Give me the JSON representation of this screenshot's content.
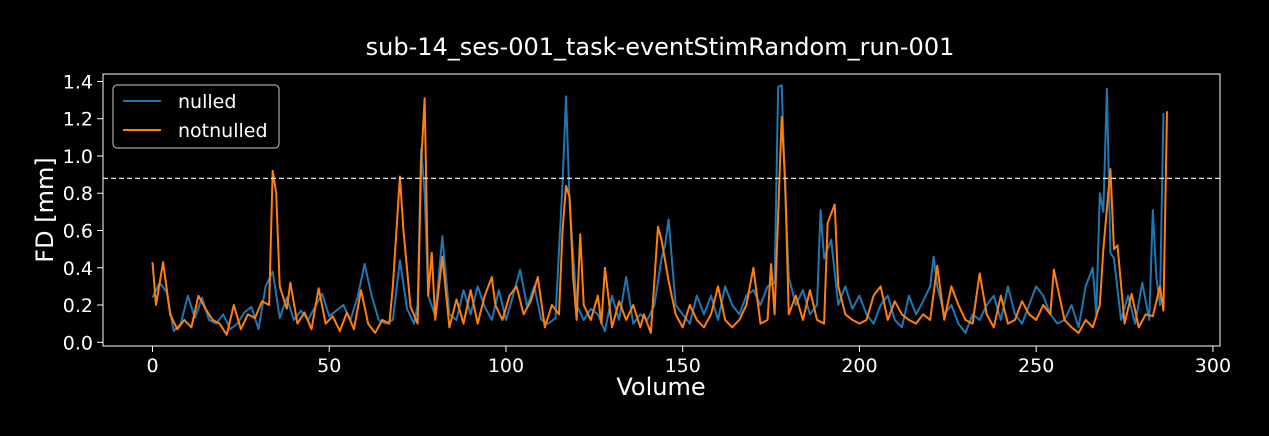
{
  "chart_data": {
    "type": "line",
    "title": "sub-14_ses-001_task-eventStimRandom_run-001",
    "xlabel": "Volume",
    "ylabel": "FD [mm]",
    "xlim": [
      -14,
      302
    ],
    "ylim": [
      -0.02,
      1.44
    ],
    "xticks": [
      0,
      50,
      100,
      150,
      200,
      250,
      300
    ],
    "yticks": [
      0.0,
      0.2,
      0.4,
      0.6,
      0.8,
      1.0,
      1.2,
      1.4
    ],
    "threshold": 0.88,
    "legend_position": "top-left",
    "grid": false,
    "background": "#000000",
    "series": [
      {
        "name": "nulled",
        "color": "#1f77b4",
        "points": [
          [
            0,
            0.24
          ],
          [
            2,
            0.32
          ],
          [
            4,
            0.27
          ],
          [
            6,
            0.06
          ],
          [
            8,
            0.1
          ],
          [
            10,
            0.25
          ],
          [
            12,
            0.13
          ],
          [
            14,
            0.24
          ],
          [
            16,
            0.12
          ],
          [
            18,
            0.1
          ],
          [
            20,
            0.15
          ],
          [
            22,
            0.07
          ],
          [
            24,
            0.1
          ],
          [
            26,
            0.16
          ],
          [
            28,
            0.19
          ],
          [
            30,
            0.07
          ],
          [
            32,
            0.3
          ],
          [
            34,
            0.38
          ],
          [
            36,
            0.13
          ],
          [
            38,
            0.24
          ],
          [
            40,
            0.12
          ],
          [
            42,
            0.17
          ],
          [
            44,
            0.12
          ],
          [
            46,
            0.19
          ],
          [
            48,
            0.26
          ],
          [
            50,
            0.14
          ],
          [
            52,
            0.17
          ],
          [
            54,
            0.2
          ],
          [
            56,
            0.12
          ],
          [
            58,
            0.24
          ],
          [
            60,
            0.42
          ],
          [
            62,
            0.25
          ],
          [
            64,
            0.12
          ],
          [
            66,
            0.1
          ],
          [
            68,
            0.12
          ],
          [
            70,
            0.44
          ],
          [
            72,
            0.18
          ],
          [
            74,
            0.1
          ],
          [
            75,
            0.2
          ],
          [
            76,
            1.04
          ],
          [
            77,
            0.8
          ],
          [
            78,
            0.25
          ],
          [
            80,
            0.14
          ],
          [
            82,
            0.57
          ],
          [
            84,
            0.15
          ],
          [
            86,
            0.12
          ],
          [
            88,
            0.28
          ],
          [
            90,
            0.15
          ],
          [
            92,
            0.3
          ],
          [
            94,
            0.19
          ],
          [
            96,
            0.12
          ],
          [
            98,
            0.28
          ],
          [
            100,
            0.12
          ],
          [
            102,
            0.25
          ],
          [
            104,
            0.39
          ],
          [
            106,
            0.19
          ],
          [
            108,
            0.3
          ],
          [
            110,
            0.12
          ],
          [
            112,
            0.1
          ],
          [
            114,
            0.13
          ],
          [
            116,
            0.85
          ],
          [
            117,
            1.32
          ],
          [
            118,
            0.75
          ],
          [
            120,
            0.2
          ],
          [
            122,
            0.12
          ],
          [
            124,
            0.18
          ],
          [
            126,
            0.15
          ],
          [
            128,
            0.06
          ],
          [
            130,
            0.25
          ],
          [
            132,
            0.12
          ],
          [
            134,
            0.35
          ],
          [
            136,
            0.1
          ],
          [
            138,
            0.15
          ],
          [
            140,
            0.12
          ],
          [
            142,
            0.2
          ],
          [
            144,
            0.45
          ],
          [
            145,
            0.52
          ],
          [
            146,
            0.66
          ],
          [
            148,
            0.2
          ],
          [
            150,
            0.15
          ],
          [
            152,
            0.1
          ],
          [
            154,
            0.25
          ],
          [
            156,
            0.15
          ],
          [
            158,
            0.25
          ],
          [
            160,
            0.12
          ],
          [
            162,
            0.3
          ],
          [
            164,
            0.2
          ],
          [
            166,
            0.15
          ],
          [
            168,
            0.25
          ],
          [
            170,
            0.28
          ],
          [
            172,
            0.2
          ],
          [
            174,
            0.3
          ],
          [
            176,
            0.32
          ],
          [
            177,
            1.37
          ],
          [
            178,
            1.38
          ],
          [
            179,
            0.8
          ],
          [
            180,
            0.35
          ],
          [
            182,
            0.2
          ],
          [
            184,
            0.28
          ],
          [
            186,
            0.15
          ],
          [
            188,
            0.2
          ],
          [
            189,
            0.71
          ],
          [
            190,
            0.45
          ],
          [
            192,
            0.55
          ],
          [
            194,
            0.2
          ],
          [
            196,
            0.3
          ],
          [
            198,
            0.18
          ],
          [
            200,
            0.25
          ],
          [
            202,
            0.15
          ],
          [
            204,
            0.1
          ],
          [
            206,
            0.2
          ],
          [
            208,
            0.25
          ],
          [
            210,
            0.12
          ],
          [
            212,
            0.08
          ],
          [
            214,
            0.25
          ],
          [
            216,
            0.15
          ],
          [
            218,
            0.22
          ],
          [
            220,
            0.3
          ],
          [
            221,
            0.46
          ],
          [
            222,
            0.3
          ],
          [
            224,
            0.15
          ],
          [
            226,
            0.2
          ],
          [
            228,
            0.1
          ],
          [
            230,
            0.05
          ],
          [
            232,
            0.15
          ],
          [
            234,
            0.12
          ],
          [
            236,
            0.2
          ],
          [
            238,
            0.25
          ],
          [
            240,
            0.12
          ],
          [
            242,
            0.3
          ],
          [
            244,
            0.15
          ],
          [
            246,
            0.1
          ],
          [
            248,
            0.2
          ],
          [
            250,
            0.3
          ],
          [
            252,
            0.25
          ],
          [
            254,
            0.15
          ],
          [
            256,
            0.1
          ],
          [
            258,
            0.12
          ],
          [
            260,
            0.2
          ],
          [
            262,
            0.08
          ],
          [
            264,
            0.3
          ],
          [
            266,
            0.4
          ],
          [
            267,
            0.15
          ],
          [
            268,
            0.8
          ],
          [
            269,
            0.7
          ],
          [
            270,
            1.36
          ],
          [
            271,
            0.48
          ],
          [
            272,
            0.45
          ],
          [
            274,
            0.12
          ],
          [
            276,
            0.25
          ],
          [
            278,
            0.1
          ],
          [
            280,
            0.32
          ],
          [
            282,
            0.12
          ],
          [
            283,
            0.71
          ],
          [
            284,
            0.35
          ],
          [
            285,
            0.2
          ],
          [
            286,
            1.23
          ]
        ]
      },
      {
        "name": "notnulled",
        "color": "#ff7f0e",
        "points": [
          [
            0,
            0.43
          ],
          [
            1,
            0.2
          ],
          [
            3,
            0.43
          ],
          [
            5,
            0.15
          ],
          [
            7,
            0.07
          ],
          [
            9,
            0.12
          ],
          [
            11,
            0.08
          ],
          [
            13,
            0.25
          ],
          [
            15,
            0.18
          ],
          [
            17,
            0.12
          ],
          [
            19,
            0.1
          ],
          [
            21,
            0.04
          ],
          [
            23,
            0.2
          ],
          [
            25,
            0.07
          ],
          [
            27,
            0.15
          ],
          [
            29,
            0.13
          ],
          [
            31,
            0.22
          ],
          [
            33,
            0.2
          ],
          [
            34,
            0.92
          ],
          [
            35,
            0.8
          ],
          [
            36,
            0.3
          ],
          [
            38,
            0.18
          ],
          [
            39,
            0.32
          ],
          [
            41,
            0.1
          ],
          [
            43,
            0.16
          ],
          [
            45,
            0.07
          ],
          [
            47,
            0.29
          ],
          [
            49,
            0.1
          ],
          [
            51,
            0.14
          ],
          [
            53,
            0.06
          ],
          [
            55,
            0.16
          ],
          [
            57,
            0.07
          ],
          [
            59,
            0.28
          ],
          [
            61,
            0.1
          ],
          [
            63,
            0.05
          ],
          [
            65,
            0.12
          ],
          [
            67,
            0.1
          ],
          [
            68,
            0.3
          ],
          [
            70,
            0.89
          ],
          [
            71,
            0.6
          ],
          [
            73,
            0.19
          ],
          [
            75,
            0.1
          ],
          [
            76,
            0.96
          ],
          [
            77,
            1.31
          ],
          [
            78,
            0.25
          ],
          [
            79,
            0.48
          ],
          [
            80,
            0.12
          ],
          [
            82,
            0.46
          ],
          [
            84,
            0.08
          ],
          [
            86,
            0.23
          ],
          [
            88,
            0.1
          ],
          [
            90,
            0.28
          ],
          [
            92,
            0.1
          ],
          [
            94,
            0.25
          ],
          [
            96,
            0.35
          ],
          [
            97,
            0.2
          ],
          [
            99,
            0.12
          ],
          [
            101,
            0.25
          ],
          [
            103,
            0.3
          ],
          [
            105,
            0.15
          ],
          [
            107,
            0.22
          ],
          [
            109,
            0.35
          ],
          [
            111,
            0.08
          ],
          [
            113,
            0.2
          ],
          [
            115,
            0.15
          ],
          [
            116,
            0.6
          ],
          [
            117,
            0.84
          ],
          [
            118,
            0.78
          ],
          [
            119,
            0.35
          ],
          [
            120,
            0.12
          ],
          [
            121,
            0.58
          ],
          [
            122,
            0.2
          ],
          [
            124,
            0.12
          ],
          [
            126,
            0.25
          ],
          [
            127,
            0.1
          ],
          [
            128,
            0.4
          ],
          [
            130,
            0.08
          ],
          [
            132,
            0.22
          ],
          [
            134,
            0.12
          ],
          [
            136,
            0.2
          ],
          [
            138,
            0.08
          ],
          [
            139,
            0.15
          ],
          [
            141,
            0.05
          ],
          [
            143,
            0.62
          ],
          [
            144,
            0.55
          ],
          [
            146,
            0.33
          ],
          [
            148,
            0.15
          ],
          [
            150,
            0.08
          ],
          [
            152,
            0.2
          ],
          [
            154,
            0.12
          ],
          [
            156,
            0.08
          ],
          [
            158,
            0.15
          ],
          [
            160,
            0.3
          ],
          [
            162,
            0.12
          ],
          [
            164,
            0.08
          ],
          [
            166,
            0.12
          ],
          [
            168,
            0.2
          ],
          [
            170,
            0.4
          ],
          [
            172,
            0.1
          ],
          [
            174,
            0.12
          ],
          [
            175,
            0.42
          ],
          [
            176,
            0.15
          ],
          [
            178,
            1.21
          ],
          [
            179,
            0.86
          ],
          [
            180,
            0.15
          ],
          [
            182,
            0.25
          ],
          [
            184,
            0.12
          ],
          [
            186,
            0.28
          ],
          [
            188,
            0.12
          ],
          [
            190,
            0.1
          ],
          [
            191,
            0.64
          ],
          [
            193,
            0.74
          ],
          [
            194,
            0.3
          ],
          [
            196,
            0.15
          ],
          [
            198,
            0.12
          ],
          [
            200,
            0.1
          ],
          [
            202,
            0.12
          ],
          [
            204,
            0.25
          ],
          [
            206,
            0.3
          ],
          [
            208,
            0.12
          ],
          [
            210,
            0.22
          ],
          [
            212,
            0.15
          ],
          [
            214,
            0.12
          ],
          [
            216,
            0.1
          ],
          [
            218,
            0.15
          ],
          [
            220,
            0.12
          ],
          [
            222,
            0.41
          ],
          [
            224,
            0.12
          ],
          [
            226,
            0.3
          ],
          [
            228,
            0.2
          ],
          [
            230,
            0.12
          ],
          [
            232,
            0.1
          ],
          [
            234,
            0.37
          ],
          [
            236,
            0.15
          ],
          [
            238,
            0.08
          ],
          [
            240,
            0.25
          ],
          [
            242,
            0.1
          ],
          [
            244,
            0.12
          ],
          [
            246,
            0.22
          ],
          [
            248,
            0.15
          ],
          [
            250,
            0.12
          ],
          [
            252,
            0.2
          ],
          [
            254,
            0.15
          ],
          [
            255,
            0.39
          ],
          [
            256,
            0.3
          ],
          [
            258,
            0.12
          ],
          [
            260,
            0.08
          ],
          [
            262,
            0.05
          ],
          [
            264,
            0.12
          ],
          [
            266,
            0.08
          ],
          [
            268,
            0.2
          ],
          [
            269,
            0.5
          ],
          [
            271,
            0.93
          ],
          [
            272,
            0.5
          ],
          [
            273,
            0.52
          ],
          [
            275,
            0.1
          ],
          [
            277,
            0.26
          ],
          [
            279,
            0.08
          ],
          [
            281,
            0.15
          ],
          [
            283,
            0.14
          ],
          [
            285,
            0.3
          ],
          [
            286,
            0.17
          ],
          [
            287,
            1.24
          ]
        ]
      }
    ]
  }
}
